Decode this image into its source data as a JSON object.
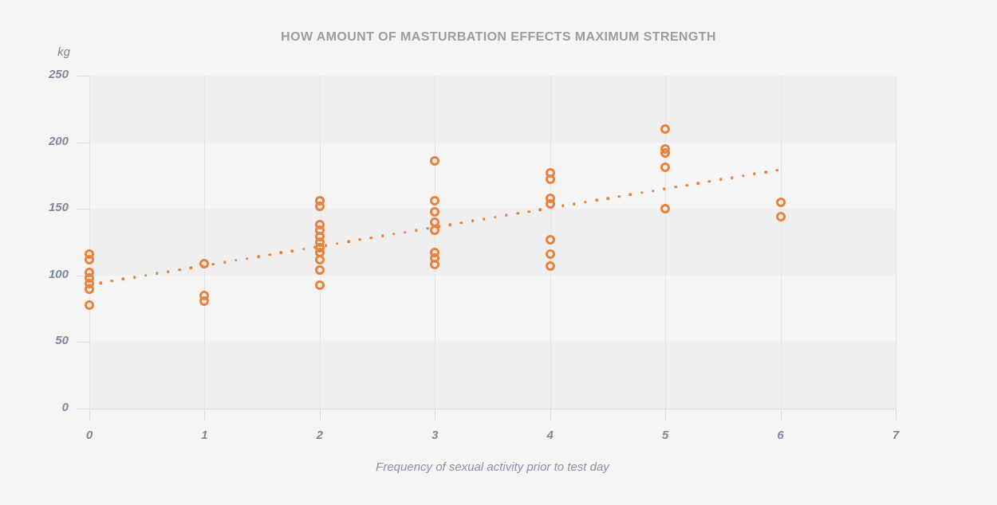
{
  "page": {
    "background_color": "#f5f5f6",
    "band_color": "#efeff0",
    "text_color": "#7d86a1",
    "title_color": "#9b9ba3"
  },
  "chart_data": {
    "type": "scatter",
    "title": "HOW AMOUNT OF MASTURBATION EFFECTS MAXIMUM STRENGTH",
    "xlabel": "Frequency of sexual activity prior to test day",
    "ylabel": "kg",
    "xlim": [
      0,
      7
    ],
    "ylim": [
      0,
      250
    ],
    "xticks": [
      0,
      1,
      2,
      3,
      4,
      5,
      6,
      7
    ],
    "yticks": [
      0,
      50,
      100,
      150,
      200,
      250
    ],
    "grid": "vertical-lines-and-horizontal-bands",
    "legend": "none",
    "point_color": "#e8823c",
    "shaded_bands_kg": [
      [
        200,
        250
      ],
      [
        100,
        150
      ],
      [
        0,
        50
      ]
    ],
    "series": [
      {
        "x": 0,
        "values": [
          116,
          112,
          102,
          98,
          94,
          90,
          78
        ]
      },
      {
        "x": 1,
        "values": [
          109,
          85,
          81
        ]
      },
      {
        "x": 2,
        "values": [
          156,
          152,
          138,
          134,
          129,
          125,
          121,
          117,
          112,
          104,
          93
        ]
      },
      {
        "x": 3,
        "values": [
          186,
          156,
          148,
          140,
          134,
          117,
          113,
          108
        ]
      },
      {
        "x": 4,
        "values": [
          177,
          172,
          158,
          154,
          127,
          116,
          107
        ]
      },
      {
        "x": 5,
        "values": [
          210,
          195,
          192,
          181,
          150
        ]
      },
      {
        "x": 6,
        "values": [
          155,
          144
        ]
      }
    ],
    "trendline": {
      "style": "dotted",
      "x0": 0,
      "y0": 93,
      "x1": 5.97,
      "y1": 179
    }
  }
}
